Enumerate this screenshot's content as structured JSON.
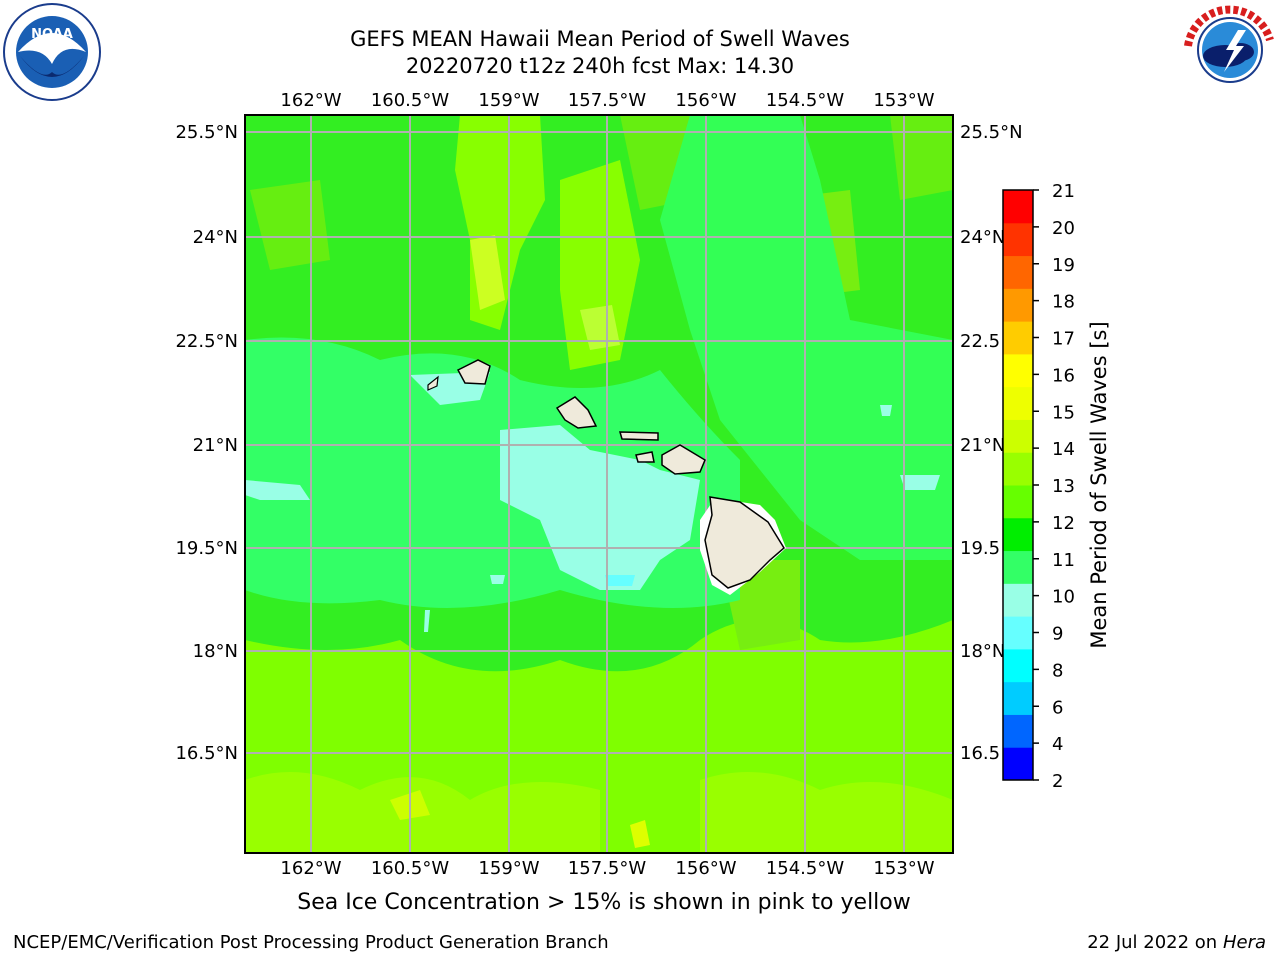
{
  "title_line1": "GEFS MEAN Hawaii Mean Period of Swell Waves",
  "title_line2": "20220720 t12z 240h fcst   Max: 14.30",
  "noaa_logo_text": "NOAA",
  "noaa_ring_text": "NATIONAL OCEANIC AND ATMOSPHERIC ADMINISTRATION · U.S. DEPARTMENT OF COMMERCE",
  "nws_ring_text": "NATIONAL WEATHER SERVICE",
  "lon_labels": [
    "162°W",
    "160.5°W",
    "159°W",
    "157.5°W",
    "156°W",
    "154.5°W",
    "153°W"
  ],
  "lat_labels": [
    "25.5°N",
    "24°N",
    "22.5°N",
    "21°N",
    "19.5°N",
    "18°N",
    "16.5°N"
  ],
  "lat_labels_right": [
    "25.5°N",
    "24°N",
    "22.5",
    "21°N",
    "19.5",
    "18°N",
    "16.5"
  ],
  "colorbar": {
    "label": "Mean Period of Swell Waves [s]",
    "ticks": [
      "2",
      "4",
      "6",
      "8",
      "9",
      "10",
      "11",
      "12",
      "13",
      "14",
      "15",
      "16",
      "17",
      "18",
      "19",
      "20",
      "21"
    ],
    "colors": [
      "#0000ff",
      "#0066ff",
      "#00ccff",
      "#00ffff",
      "#66ffff",
      "#99ffe6",
      "#33ff66",
      "#00ee00",
      "#66ff00",
      "#99ff00",
      "#ccff00",
      "#eeff00",
      "#ffff00",
      "#ffcc00",
      "#ff9900",
      "#ff6600",
      "#ff3300",
      "#ff0000"
    ]
  },
  "note": "Sea Ice Concentration > 15% is shown in pink to yellow",
  "footer_left": "NCEP/EMC/Verification Post Processing Product Generation Branch",
  "footer_right_prefix": "22 Jul 2022 on ",
  "footer_right_machine": "Hera"
}
